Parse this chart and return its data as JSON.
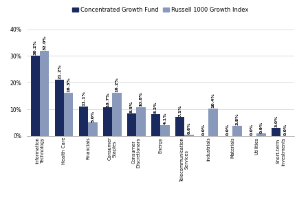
{
  "categories": [
    "Information\nTechnology",
    "Health Care",
    "Financials",
    "Consumer\nStaples",
    "Consumer\nDiscretionary",
    "Energy",
    "Telecommunication\nServices",
    "Industrials",
    "Materials",
    "Utilities",
    "Short-term\nInvestments"
  ],
  "fund_values": [
    30.2,
    21.2,
    11.1,
    10.7,
    8.5,
    8.2,
    7.1,
    0.0,
    0.0,
    0.0,
    3.0
  ],
  "index_values": [
    32.0,
    16.3,
    5.0,
    16.2,
    10.8,
    4.1,
    0.6,
    10.4,
    3.8,
    0.9,
    0.0
  ],
  "fund_color": "#1a2a5e",
  "index_color": "#8899bb",
  "legend_labels": [
    "Concentrated Growth Fund",
    "Russell 1000 Growth Index"
  ],
  "ylim": [
    0,
    42
  ],
  "yticks": [
    0,
    10,
    20,
    30,
    40
  ],
  "ytick_labels": [
    "0%",
    "10%",
    "20%",
    "30%",
    "40%"
  ],
  "bar_width": 0.38,
  "label_fontsize": 4.8,
  "tick_fontsize": 5.5,
  "legend_fontsize": 6.0,
  "value_fontsize": 4.5
}
